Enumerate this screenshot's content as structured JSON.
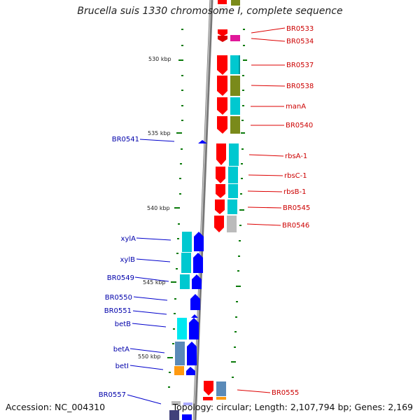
{
  "title": "Brucella suis 1330 chromosome I, complete sequence",
  "accession_text": "Accession: NC_004310",
  "topology_text": "Topology: circular; Length: 2,107,794 bp; Genes: 2,169",
  "colors": {
    "forward_gene": "#ff0000",
    "reverse_gene": "#0000ff",
    "backbone": "#888888",
    "tick": "#0a7a0a",
    "label_right": "#cc0000",
    "label_left": "#0000aa",
    "cog_cyan": "#00c8d0",
    "cog_olive": "#7a8a1a",
    "cog_steelblue": "#5a8ab8",
    "cog_orange": "#ff9a10",
    "cog_magenta": "#e0189a",
    "cog_gray": "#bbbbbb"
  },
  "scale_labels": [
    "530 kbp",
    "535 kbp",
    "540 kbp",
    "545 kbp",
    "550 kbp"
  ],
  "right_genes": [
    "BR0533",
    "BR0534",
    "BR0537",
    "BR0538",
    "manA",
    "BR0540",
    "rbsA-1",
    "rbsC-1",
    "rbsB-1",
    "BR0545",
    "BR0546",
    "BR0555"
  ],
  "left_genes": [
    "BR0541",
    "xylA",
    "xylB",
    "BR0549",
    "BR0550",
    "BR0551",
    "betB",
    "betA",
    "betI",
    "BR0557"
  ]
}
